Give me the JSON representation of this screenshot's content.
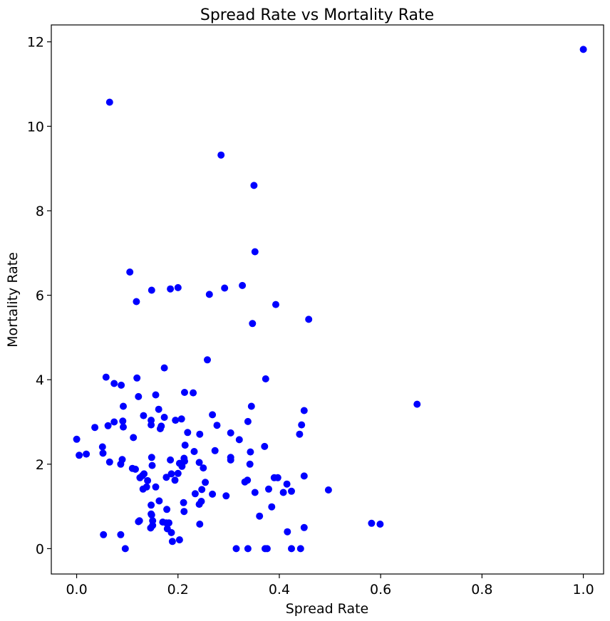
{
  "chart_data": {
    "type": "scatter",
    "title": "Spread Rate vs Mortality Rate",
    "xlabel": "Spread Rate",
    "ylabel": "Mortality Rate",
    "xlim": [
      -0.05,
      1.04
    ],
    "ylim": [
      -0.6,
      12.4
    ],
    "xticks": [
      0.0,
      0.2,
      0.4,
      0.6,
      0.8,
      1.0
    ],
    "xtick_labels": [
      "0.0",
      "0.2",
      "0.4",
      "0.6",
      "0.8",
      "1.0"
    ],
    "yticks": [
      0,
      2,
      4,
      6,
      8,
      10,
      12
    ],
    "ytick_labels": [
      "0",
      "2",
      "4",
      "6",
      "8",
      "10",
      "12"
    ],
    "grid": false,
    "marker_color": "#0000ff",
    "points": [
      [
        1.0,
        11.82
      ],
      [
        0.065,
        10.57
      ],
      [
        0.285,
        9.32
      ],
      [
        0.35,
        8.6
      ],
      [
        0.352,
        7.03
      ],
      [
        0.105,
        6.55
      ],
      [
        0.148,
        6.12
      ],
      [
        0.185,
        6.15
      ],
      [
        0.2,
        6.18
      ],
      [
        0.118,
        5.85
      ],
      [
        0.262,
        6.02
      ],
      [
        0.292,
        6.17
      ],
      [
        0.327,
        6.23
      ],
      [
        0.393,
        5.78
      ],
      [
        0.347,
        5.33
      ],
      [
        0.458,
        5.43
      ],
      [
        0.672,
        3.42
      ],
      [
        0.058,
        4.06
      ],
      [
        0.119,
        4.04
      ],
      [
        0.173,
        4.28
      ],
      [
        0.258,
        4.47
      ],
      [
        0.373,
        4.02
      ],
      [
        0.074,
        3.91
      ],
      [
        0.088,
        3.87
      ],
      [
        0.122,
        3.6
      ],
      [
        0.156,
        3.64
      ],
      [
        0.213,
        3.7
      ],
      [
        0.23,
        3.69
      ],
      [
        0.092,
        3.37
      ],
      [
        0.162,
        3.3
      ],
      [
        0.345,
        3.37
      ],
      [
        0.449,
        3.27
      ],
      [
        0.132,
        3.15
      ],
      [
        0.173,
        3.11
      ],
      [
        0.268,
        3.17
      ],
      [
        0.147,
        3.04
      ],
      [
        0.195,
        3.04
      ],
      [
        0.207,
        3.07
      ],
      [
        0.074,
        3.0
      ],
      [
        0.091,
        3.02
      ],
      [
        0.338,
        3.01
      ],
      [
        0.036,
        2.87
      ],
      [
        0.062,
        2.91
      ],
      [
        0.092,
        2.88
      ],
      [
        0.147,
        2.93
      ],
      [
        0.165,
        2.84
      ],
      [
        0.167,
        2.9
      ],
      [
        0.277,
        2.92
      ],
      [
        0.444,
        2.93
      ],
      [
        0.219,
        2.75
      ],
      [
        0.243,
        2.71
      ],
      [
        0.304,
        2.74
      ],
      [
        0.44,
        2.71
      ],
      [
        0.0,
        2.59
      ],
      [
        0.112,
        2.63
      ],
      [
        0.321,
        2.58
      ],
      [
        0.214,
        2.45
      ],
      [
        0.371,
        2.42
      ],
      [
        0.051,
        2.41
      ],
      [
        0.232,
        2.3
      ],
      [
        0.273,
        2.32
      ],
      [
        0.343,
        2.29
      ],
      [
        0.005,
        2.21
      ],
      [
        0.019,
        2.24
      ],
      [
        0.052,
        2.26
      ],
      [
        0.148,
        2.16
      ],
      [
        0.212,
        2.14
      ],
      [
        0.304,
        2.16
      ],
      [
        0.065,
        2.05
      ],
      [
        0.087,
        2.0
      ],
      [
        0.09,
        2.11
      ],
      [
        0.185,
        2.1
      ],
      [
        0.203,
        2.02
      ],
      [
        0.213,
        2.07
      ],
      [
        0.242,
        2.04
      ],
      [
        0.342,
        2.0
      ],
      [
        0.304,
        2.1
      ],
      [
        0.11,
        1.9
      ],
      [
        0.116,
        1.88
      ],
      [
        0.149,
        1.97
      ],
      [
        0.208,
        1.95
      ],
      [
        0.25,
        1.91
      ],
      [
        0.187,
        1.77
      ],
      [
        0.2,
        1.78
      ],
      [
        0.125,
        1.68
      ],
      [
        0.13,
        1.73
      ],
      [
        0.133,
        1.77
      ],
      [
        0.177,
        1.69
      ],
      [
        0.194,
        1.62
      ],
      [
        0.39,
        1.68
      ],
      [
        0.397,
        1.68
      ],
      [
        0.449,
        1.72
      ],
      [
        0.14,
        1.61
      ],
      [
        0.254,
        1.57
      ],
      [
        0.332,
        1.58
      ],
      [
        0.337,
        1.62
      ],
      [
        0.415,
        1.53
      ],
      [
        0.131,
        1.41
      ],
      [
        0.138,
        1.46
      ],
      [
        0.156,
        1.46
      ],
      [
        0.247,
        1.4
      ],
      [
        0.379,
        1.41
      ],
      [
        0.352,
        1.33
      ],
      [
        0.408,
        1.33
      ],
      [
        0.424,
        1.36
      ],
      [
        0.497,
        1.39
      ],
      [
        0.234,
        1.3
      ],
      [
        0.268,
        1.29
      ],
      [
        0.295,
        1.25
      ],
      [
        0.163,
        1.13
      ],
      [
        0.211,
        1.09
      ],
      [
        0.242,
        1.05
      ],
      [
        0.246,
        1.12
      ],
      [
        0.147,
        1.03
      ],
      [
        0.178,
        0.93
      ],
      [
        0.212,
        0.88
      ],
      [
        0.147,
        0.82
      ],
      [
        0.148,
        0.8
      ],
      [
        0.385,
        0.99
      ],
      [
        0.361,
        0.77
      ],
      [
        0.122,
        0.64
      ],
      [
        0.124,
        0.66
      ],
      [
        0.15,
        0.66
      ],
      [
        0.15,
        0.55
      ],
      [
        0.146,
        0.49
      ],
      [
        0.17,
        0.63
      ],
      [
        0.177,
        0.61
      ],
      [
        0.182,
        0.61
      ],
      [
        0.243,
        0.58
      ],
      [
        0.179,
        0.47
      ],
      [
        0.187,
        0.38
      ],
      [
        0.582,
        0.6
      ],
      [
        0.599,
        0.58
      ],
      [
        0.449,
        0.5
      ],
      [
        0.416,
        0.4
      ],
      [
        0.053,
        0.33
      ],
      [
        0.087,
        0.33
      ],
      [
        0.189,
        0.17
      ],
      [
        0.203,
        0.21
      ],
      [
        0.096,
        0.0
      ],
      [
        0.315,
        0.0
      ],
      [
        0.338,
        0.0
      ],
      [
        0.372,
        0.0
      ],
      [
        0.376,
        0.0
      ],
      [
        0.424,
        0.0
      ],
      [
        0.442,
        0.0
      ]
    ]
  }
}
